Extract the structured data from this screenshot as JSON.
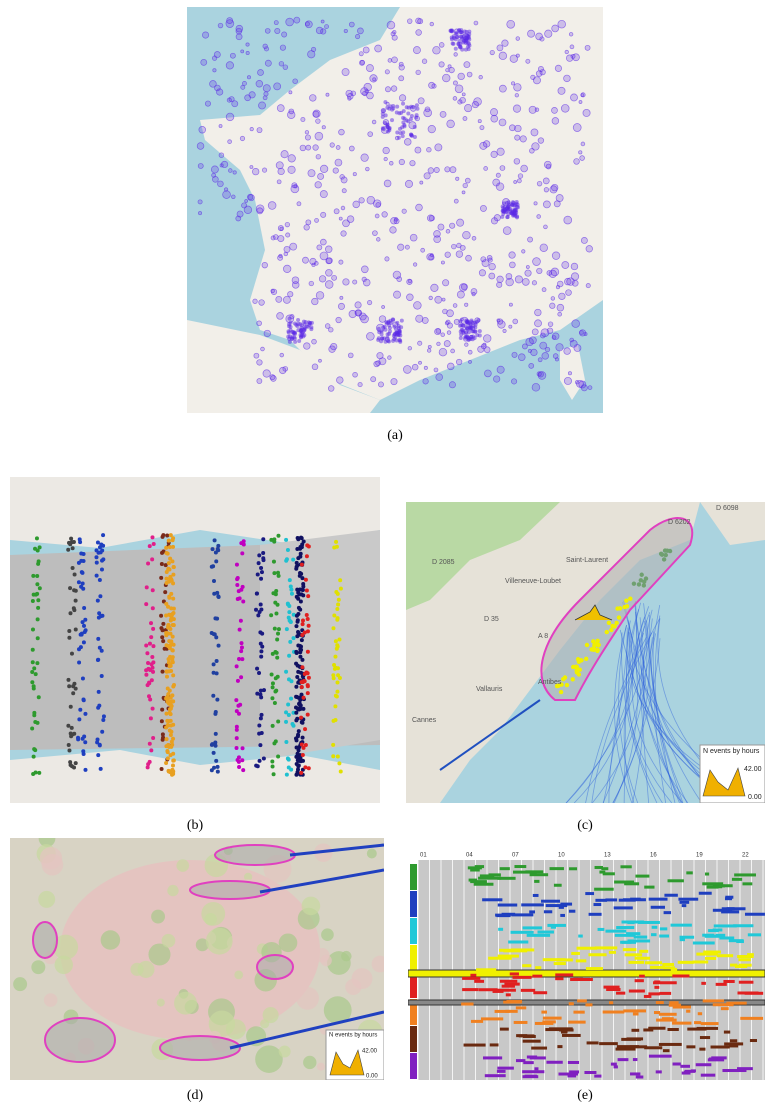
{
  "panels": {
    "a": {
      "caption": "(a)"
    },
    "b": {
      "caption": "(b)"
    },
    "c": {
      "caption": "(c)",
      "map_labels": [
        "D 6202",
        "D 6098",
        "D 2085",
        "Villeneuve-Loubet",
        "Saint-Laurent",
        "D 35",
        "A 8",
        "Vallauris",
        "Antibes",
        "Cannes"
      ],
      "legend": {
        "title": "N events by hours",
        "max": "42.00",
        "min": "0.00"
      }
    },
    "d": {
      "caption": "(d)",
      "legend": {
        "title": "N events by hours",
        "max": "42.00",
        "min": "0.00"
      }
    },
    "e": {
      "caption": "(e)",
      "hour_labels": [
        "01",
        "04",
        "07",
        "10",
        "13",
        "16",
        "19",
        "22"
      ]
    }
  }
}
